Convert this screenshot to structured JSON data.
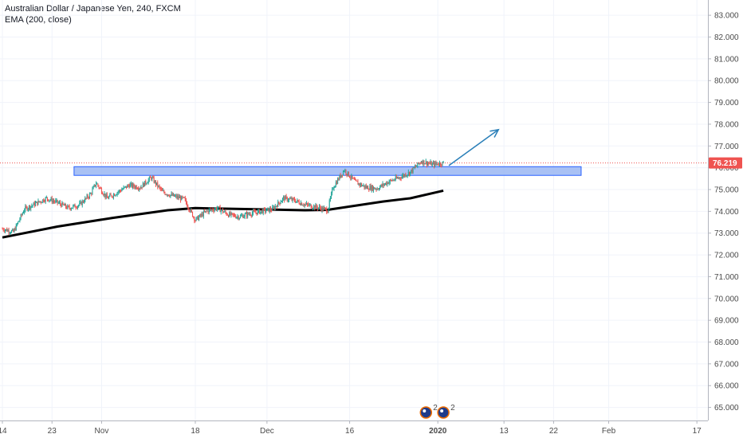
{
  "legend": {
    "symbol_line": "Australian Dollar / Japanese Yen, 240, FXCM",
    "ema_line": "EMA (200, close)"
  },
  "colors": {
    "up": "#26a69a",
    "down": "#ef5350",
    "ema": "#000000",
    "zone_fill": "#9ab6f2",
    "zone_stroke": "#2962ff",
    "arrow": "#2a7fb8",
    "price_line": "#ef5350",
    "grid": "#f0f3fa"
  },
  "events": {
    "badge_count_1": "2",
    "badge_count_2": "2"
  },
  "chart_data": {
    "type": "candlestick",
    "y_axis": {
      "ticks": [
        "65.000",
        "66.000",
        "67.000",
        "68.000",
        "69.000",
        "70.000",
        "71.000",
        "72.000",
        "73.000",
        "74.000",
        "75.000",
        "76.000",
        "77.000",
        "78.000",
        "79.000",
        "80.000",
        "81.000",
        "82.000",
        "83.000"
      ],
      "range": [
        64.4,
        83.7
      ]
    },
    "x_axis": {
      "ticks": [
        "14",
        "23",
        "Nov",
        "18",
        "Dec",
        "16",
        "2020",
        "13",
        "22",
        "Feb",
        "17"
      ],
      "range": [
        "2019-10-14",
        "2020-02-19"
      ]
    },
    "last_price": "76.219",
    "resistance_zone": {
      "from_date": "2019-10-27",
      "to_date": "2020-01-27",
      "low": 75.65,
      "high": 76.05
    },
    "projection_arrow": {
      "from": [
        "2020-01-03",
        76.1
      ],
      "to": [
        "2020-01-12",
        77.75
      ]
    },
    "price_path": [
      [
        "2019-10-14",
        73.2
      ],
      [
        "2019-10-16",
        73.05
      ],
      [
        "2019-10-18",
        74.1
      ],
      [
        "2019-10-20",
        74.35
      ],
      [
        "2019-10-22",
        74.6
      ],
      [
        "2019-10-24",
        74.4
      ],
      [
        "2019-10-26",
        74.15
      ],
      [
        "2019-10-28",
        74.3
      ],
      [
        "2019-10-30",
        74.8
      ],
      [
        "2019-10-31",
        75.3
      ],
      [
        "2019-11-02",
        74.6
      ],
      [
        "2019-11-04",
        74.9
      ],
      [
        "2019-11-06",
        75.2
      ],
      [
        "2019-11-08",
        75.1
      ],
      [
        "2019-11-10",
        75.55
      ],
      [
        "2019-11-12",
        74.9
      ],
      [
        "2019-11-14",
        74.7
      ],
      [
        "2019-11-16",
        74.55
      ],
      [
        "2019-11-18",
        73.6
      ],
      [
        "2019-11-20",
        74.0
      ],
      [
        "2019-11-22",
        74.15
      ],
      [
        "2019-11-24",
        73.85
      ],
      [
        "2019-11-26",
        73.75
      ],
      [
        "2019-11-28",
        73.9
      ],
      [
        "2019-11-30",
        74.0
      ],
      [
        "2019-12-02",
        74.1
      ],
      [
        "2019-12-04",
        74.6
      ],
      [
        "2019-12-06",
        74.5
      ],
      [
        "2019-12-08",
        74.3
      ],
      [
        "2019-12-10",
        74.2
      ],
      [
        "2019-12-12",
        74.05
      ],
      [
        "2019-12-13",
        75.1
      ],
      [
        "2019-12-15",
        75.9
      ],
      [
        "2019-12-17",
        75.35
      ],
      [
        "2019-12-19",
        75.1
      ],
      [
        "2019-12-21",
        75.05
      ],
      [
        "2019-12-23",
        75.35
      ],
      [
        "2019-12-25",
        75.55
      ],
      [
        "2019-12-27",
        75.8
      ],
      [
        "2019-12-29",
        76.3
      ],
      [
        "2019-12-31",
        76.15
      ],
      [
        "2020-01-02",
        76.22
      ]
    ],
    "ema_points": [
      [
        "2019-10-14",
        72.8
      ],
      [
        "2019-10-24",
        73.3
      ],
      [
        "2019-11-03",
        73.7
      ],
      [
        "2019-11-13",
        74.05
      ],
      [
        "2019-11-18",
        74.15
      ],
      [
        "2019-11-28",
        74.1
      ],
      [
        "2019-12-08",
        74.05
      ],
      [
        "2019-12-12",
        74.07
      ],
      [
        "2019-12-22",
        74.45
      ],
      [
        "2019-12-27",
        74.6
      ],
      [
        "2020-01-02",
        74.95
      ]
    ]
  }
}
